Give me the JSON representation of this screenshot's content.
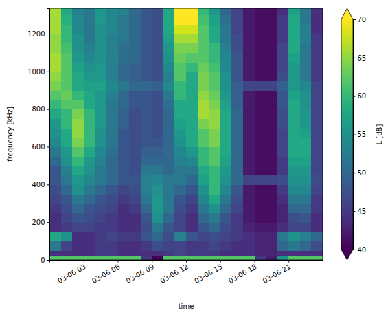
{
  "chart_data": {
    "type": "heatmap",
    "x_label": "time",
    "y_label": "frequency [kHz]",
    "xlim": [
      0,
      24
    ],
    "ylim": [
      0,
      1335
    ],
    "xticks": [
      {
        "value": 3,
        "label": "03-06 03"
      },
      {
        "value": 6,
        "label": "03-06 06"
      },
      {
        "value": 9,
        "label": "03-06 09"
      },
      {
        "value": 12,
        "label": "03-06 12"
      },
      {
        "value": 15,
        "label": "03-06 15"
      },
      {
        "value": 18,
        "label": "03-06 18"
      },
      {
        "value": 21,
        "label": "03-06 21"
      }
    ],
    "yticks": [
      0,
      200,
      400,
      600,
      800,
      1000,
      1200
    ],
    "x_bins": [
      0,
      1,
      2,
      3,
      4,
      5,
      6,
      7,
      8,
      9,
      10,
      11,
      12,
      13,
      14,
      15,
      16,
      17,
      18,
      19,
      20,
      21,
      22,
      23,
      24
    ],
    "y_bins": [
      0,
      25,
      50,
      100,
      150,
      200,
      250,
      300,
      350,
      400,
      450,
      500,
      550,
      600,
      650,
      700,
      750,
      800,
      850,
      900,
      950,
      1000,
      1050,
      1100,
      1150,
      1200,
      1250,
      1300,
      1335
    ],
    "z": [
      [
        62,
        62,
        62,
        62,
        62,
        62,
        62,
        62,
        45,
        40,
        62,
        62,
        62,
        62,
        62,
        62,
        62,
        62,
        45,
        42,
        55,
        62,
        62,
        62
      ],
      [
        44,
        44,
        44,
        44,
        45,
        45,
        44,
        44,
        44,
        44,
        45,
        46,
        45,
        45,
        45,
        44,
        44,
        44,
        43,
        43,
        44,
        44,
        44,
        44
      ],
      [
        52,
        46,
        44,
        44,
        45,
        45,
        44,
        44,
        45,
        47,
        46,
        46,
        45,
        45,
        46,
        45,
        44,
        44,
        43,
        43,
        50,
        52,
        50,
        47
      ],
      [
        58,
        55,
        44,
        44,
        45,
        46,
        45,
        45,
        48,
        50,
        47,
        53,
        48,
        46,
        47,
        46,
        45,
        44,
        43,
        43,
        52,
        55,
        53,
        50
      ],
      [
        44,
        45,
        46,
        46,
        45,
        45,
        44,
        44,
        47,
        52,
        48,
        46,
        44,
        48,
        50,
        47,
        45,
        43,
        42,
        42,
        44,
        46,
        46,
        44
      ],
      [
        44,
        46,
        48,
        47,
        46,
        45,
        44,
        44,
        48,
        55,
        50,
        46,
        44,
        50,
        52,
        48,
        45,
        42,
        41,
        41,
        43,
        47,
        48,
        44
      ],
      [
        45,
        47,
        50,
        48,
        47,
        46,
        44,
        45,
        50,
        56,
        52,
        47,
        45,
        52,
        55,
        50,
        46,
        42,
        41,
        41,
        43,
        50,
        50,
        45
      ],
      [
        46,
        48,
        52,
        50,
        48,
        47,
        45,
        46,
        52,
        56,
        52,
        48,
        46,
        54,
        58,
        52,
        47,
        42,
        41,
        41,
        44,
        52,
        52,
        45
      ],
      [
        47,
        50,
        55,
        52,
        50,
        48,
        46,
        47,
        53,
        55,
        52,
        50,
        48,
        55,
        60,
        54,
        48,
        42,
        41,
        41,
        45,
        54,
        54,
        46
      ],
      [
        48,
        52,
        56,
        54,
        52,
        50,
        48,
        48,
        53,
        54,
        52,
        52,
        50,
        57,
        60,
        55,
        50,
        46,
        46,
        46,
        47,
        55,
        55,
        47
      ],
      [
        48,
        53,
        58,
        55,
        52,
        50,
        48,
        47,
        52,
        52,
        50,
        52,
        52,
        58,
        60,
        56,
        50,
        42,
        41,
        41,
        45,
        56,
        56,
        46
      ],
      [
        50,
        55,
        60,
        56,
        53,
        50,
        48,
        47,
        50,
        50,
        50,
        53,
        54,
        60,
        62,
        57,
        50,
        42,
        41,
        41,
        45,
        57,
        57,
        46
      ],
      [
        52,
        56,
        62,
        58,
        54,
        51,
        48,
        47,
        49,
        49,
        50,
        54,
        56,
        60,
        62,
        58,
        50,
        42,
        41,
        41,
        46,
        58,
        58,
        46
      ],
      [
        54,
        58,
        64,
        60,
        55,
        52,
        48,
        47,
        48,
        48,
        50,
        55,
        58,
        62,
        64,
        58,
        50,
        42,
        41,
        41,
        46,
        58,
        58,
        46
      ],
      [
        55,
        58,
        65,
        60,
        55,
        52,
        48,
        47,
        48,
        47,
        50,
        56,
        58,
        62,
        64,
        58,
        50,
        42,
        41,
        41,
        46,
        58,
        57,
        46
      ],
      [
        56,
        60,
        65,
        60,
        56,
        52,
        49,
        47,
        48,
        47,
        50,
        57,
        58,
        64,
        65,
        58,
        50,
        42,
        41,
        41,
        47,
        58,
        56,
        46
      ],
      [
        58,
        60,
        64,
        60,
        56,
        52,
        49,
        47,
        48,
        47,
        50,
        58,
        58,
        66,
        65,
        58,
        50,
        42,
        41,
        41,
        47,
        58,
        56,
        46
      ],
      [
        60,
        62,
        62,
        58,
        56,
        52,
        50,
        48,
        48,
        47,
        51,
        58,
        58,
        66,
        64,
        57,
        49,
        42,
        41,
        41,
        48,
        58,
        55,
        46
      ],
      [
        62,
        63,
        60,
        58,
        56,
        53,
        50,
        48,
        48,
        47,
        52,
        60,
        58,
        65,
        63,
        56,
        49,
        42,
        41,
        41,
        48,
        57,
        55,
        46
      ],
      [
        64,
        62,
        58,
        57,
        57,
        54,
        52,
        50,
        50,
        49,
        54,
        60,
        58,
        64,
        62,
        55,
        49,
        46,
        46,
        46,
        49,
        56,
        54,
        46
      ],
      [
        65,
        62,
        58,
        56,
        56,
        53,
        50,
        49,
        48,
        47,
        53,
        62,
        58,
        64,
        62,
        55,
        48,
        42,
        41,
        41,
        47,
        56,
        52,
        45
      ],
      [
        66,
        62,
        57,
        55,
        56,
        53,
        50,
        49,
        48,
        47,
        54,
        62,
        60,
        63,
        61,
        54,
        48,
        42,
        41,
        41,
        46,
        56,
        52,
        45
      ],
      [
        66,
        62,
        56,
        54,
        55,
        53,
        51,
        50,
        48,
        47,
        55,
        63,
        62,
        62,
        60,
        54,
        48,
        42,
        41,
        41,
        46,
        57,
        52,
        45
      ],
      [
        65,
        61,
        55,
        53,
        55,
        53,
        51,
        50,
        48,
        47,
        56,
        64,
        64,
        62,
        60,
        53,
        47,
        42,
        41,
        41,
        46,
        58,
        52,
        45
      ],
      [
        65,
        60,
        55,
        52,
        55,
        53,
        52,
        50,
        48,
        47,
        57,
        66,
        66,
        62,
        58,
        52,
        47,
        42,
        41,
        41,
        45,
        58,
        53,
        45
      ],
      [
        66,
        60,
        54,
        52,
        55,
        54,
        52,
        50,
        48,
        47,
        58,
        68,
        68,
        62,
        58,
        52,
        46,
        42,
        41,
        41,
        45,
        58,
        53,
        44
      ],
      [
        66,
        59,
        54,
        52,
        56,
        54,
        52,
        50,
        48,
        47,
        58,
        70,
        70,
        61,
        57,
        51,
        46,
        42,
        41,
        41,
        45,
        58,
        52,
        44
      ],
      [
        66,
        58,
        53,
        52,
        56,
        54,
        53,
        50,
        48,
        47,
        58,
        70,
        72,
        60,
        56,
        50,
        46,
        42,
        41,
        41,
        44,
        57,
        52,
        44
      ]
    ],
    "colorbar": {
      "label": "L [dB]",
      "range": [
        40,
        70
      ],
      "ticks": [
        40,
        45,
        50,
        55,
        60,
        65,
        70
      ]
    }
  }
}
